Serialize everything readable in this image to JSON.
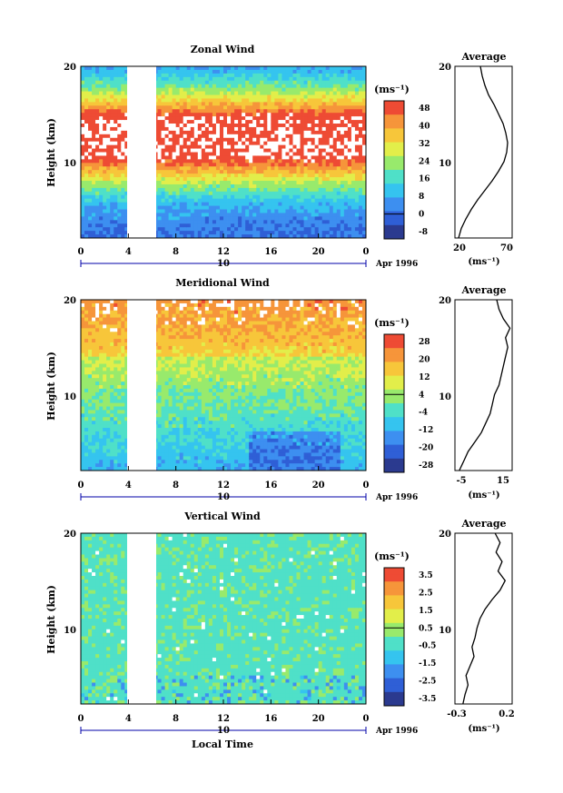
{
  "chart_data": [
    {
      "type": "heatmap",
      "title": "Zonal Wind",
      "ylabel": "Height (km)",
      "xlabel": "",
      "xlim": [
        0,
        24
      ],
      "ylim": [
        2,
        20
      ],
      "x_ticks": [
        "0",
        "4",
        "8",
        "12",
        "16",
        "20",
        "0"
      ],
      "y_ticks": [
        "20",
        "10"
      ],
      "date_label": "10",
      "month_label": "Apr 1996",
      "data_gap_hours": [
        4,
        6.2
      ],
      "colorbar": {
        "unit": "(ms⁻¹)",
        "levels": [
          "48",
          "40",
          "32",
          "24",
          "16",
          "8",
          "0",
          "-8"
        ],
        "min": -8,
        "max": 52
      },
      "average_profile": {
        "title": "Average",
        "xlabel": "(ms⁻¹)",
        "x_ticks": [
          "20",
          "70"
        ],
        "xlim": [
          15,
          78
        ],
        "y_ticks": [
          "20",
          "10"
        ],
        "height_km": [
          2,
          3,
          4,
          5,
          6,
          7,
          8,
          9,
          10,
          11,
          12,
          13,
          14,
          15,
          16,
          17,
          18,
          19,
          20
        ],
        "values": [
          19,
          22,
          27,
          33,
          40,
          48,
          56,
          63,
          69,
          72,
          73,
          71,
          68,
          63,
          58,
          52,
          48,
          45,
          43
        ]
      }
    },
    {
      "type": "heatmap",
      "title": "Meridional Wind",
      "ylabel": "Height (km)",
      "xlabel": "",
      "xlim": [
        0,
        24
      ],
      "ylim": [
        2,
        20
      ],
      "x_ticks": [
        "0",
        "4",
        "8",
        "12",
        "16",
        "20",
        "0"
      ],
      "y_ticks": [
        "20",
        "10"
      ],
      "date_label": "10",
      "month_label": "Apr 1996",
      "data_gap_hours": [
        4,
        6.2
      ],
      "colorbar": {
        "unit": "(ms⁻¹)",
        "levels": [
          "28",
          "20",
          "12",
          "4",
          "-4",
          "-12",
          "-20",
          "-28"
        ],
        "min": -30,
        "max": 30
      },
      "average_profile": {
        "title": "Average",
        "xlabel": "(ms⁻¹)",
        "x_ticks": [
          "-5",
          "15"
        ],
        "xlim": [
          -8,
          18
        ],
        "y_ticks": [
          "20",
          "10"
        ],
        "height_km": [
          2,
          3,
          4,
          5,
          6,
          7,
          8,
          9,
          10,
          11,
          12,
          13,
          14,
          15,
          16,
          17,
          18,
          19,
          20
        ],
        "values": [
          -6,
          -4,
          -2,
          1,
          4,
          6,
          8,
          9,
          10,
          12,
          13,
          14,
          15,
          16,
          15,
          17,
          14,
          12,
          11
        ]
      }
    },
    {
      "type": "heatmap",
      "title": "Vertical Wind",
      "ylabel": "Height (km)",
      "xlabel": "Local Time",
      "xlim": [
        0,
        24
      ],
      "ylim": [
        2,
        20
      ],
      "x_ticks": [
        "0",
        "4",
        "8",
        "12",
        "16",
        "20",
        "0"
      ],
      "y_ticks": [
        "20",
        "10"
      ],
      "date_label": "10",
      "month_label": "Apr 1996",
      "data_gap_hours": [
        4,
        6.2
      ],
      "colorbar": {
        "unit": "(ms⁻¹)",
        "levels": [
          "3.5",
          "2.5",
          "1.5",
          "0.5",
          "-0.5",
          "-1.5",
          "-2.5",
          "-3.5"
        ],
        "min": -4,
        "max": 4
      },
      "average_profile": {
        "title": "Average",
        "xlabel": "(ms⁻¹)",
        "x_ticks": [
          "-0.3",
          "0.2"
        ],
        "xlim": [
          -0.35,
          0.22
        ],
        "y_ticks": [
          "20",
          "10"
        ],
        "height_km": [
          2,
          3,
          4,
          5,
          6,
          7,
          8,
          9,
          10,
          11,
          12,
          13,
          14,
          15,
          16,
          17,
          18,
          19,
          20
        ],
        "values": [
          -0.27,
          -0.25,
          -0.22,
          -0.24,
          -0.2,
          -0.16,
          -0.18,
          -0.15,
          -0.13,
          -0.1,
          -0.05,
          0.02,
          0.1,
          0.15,
          0.08,
          0.12,
          0.06,
          0.1,
          0.05
        ]
      }
    }
  ]
}
